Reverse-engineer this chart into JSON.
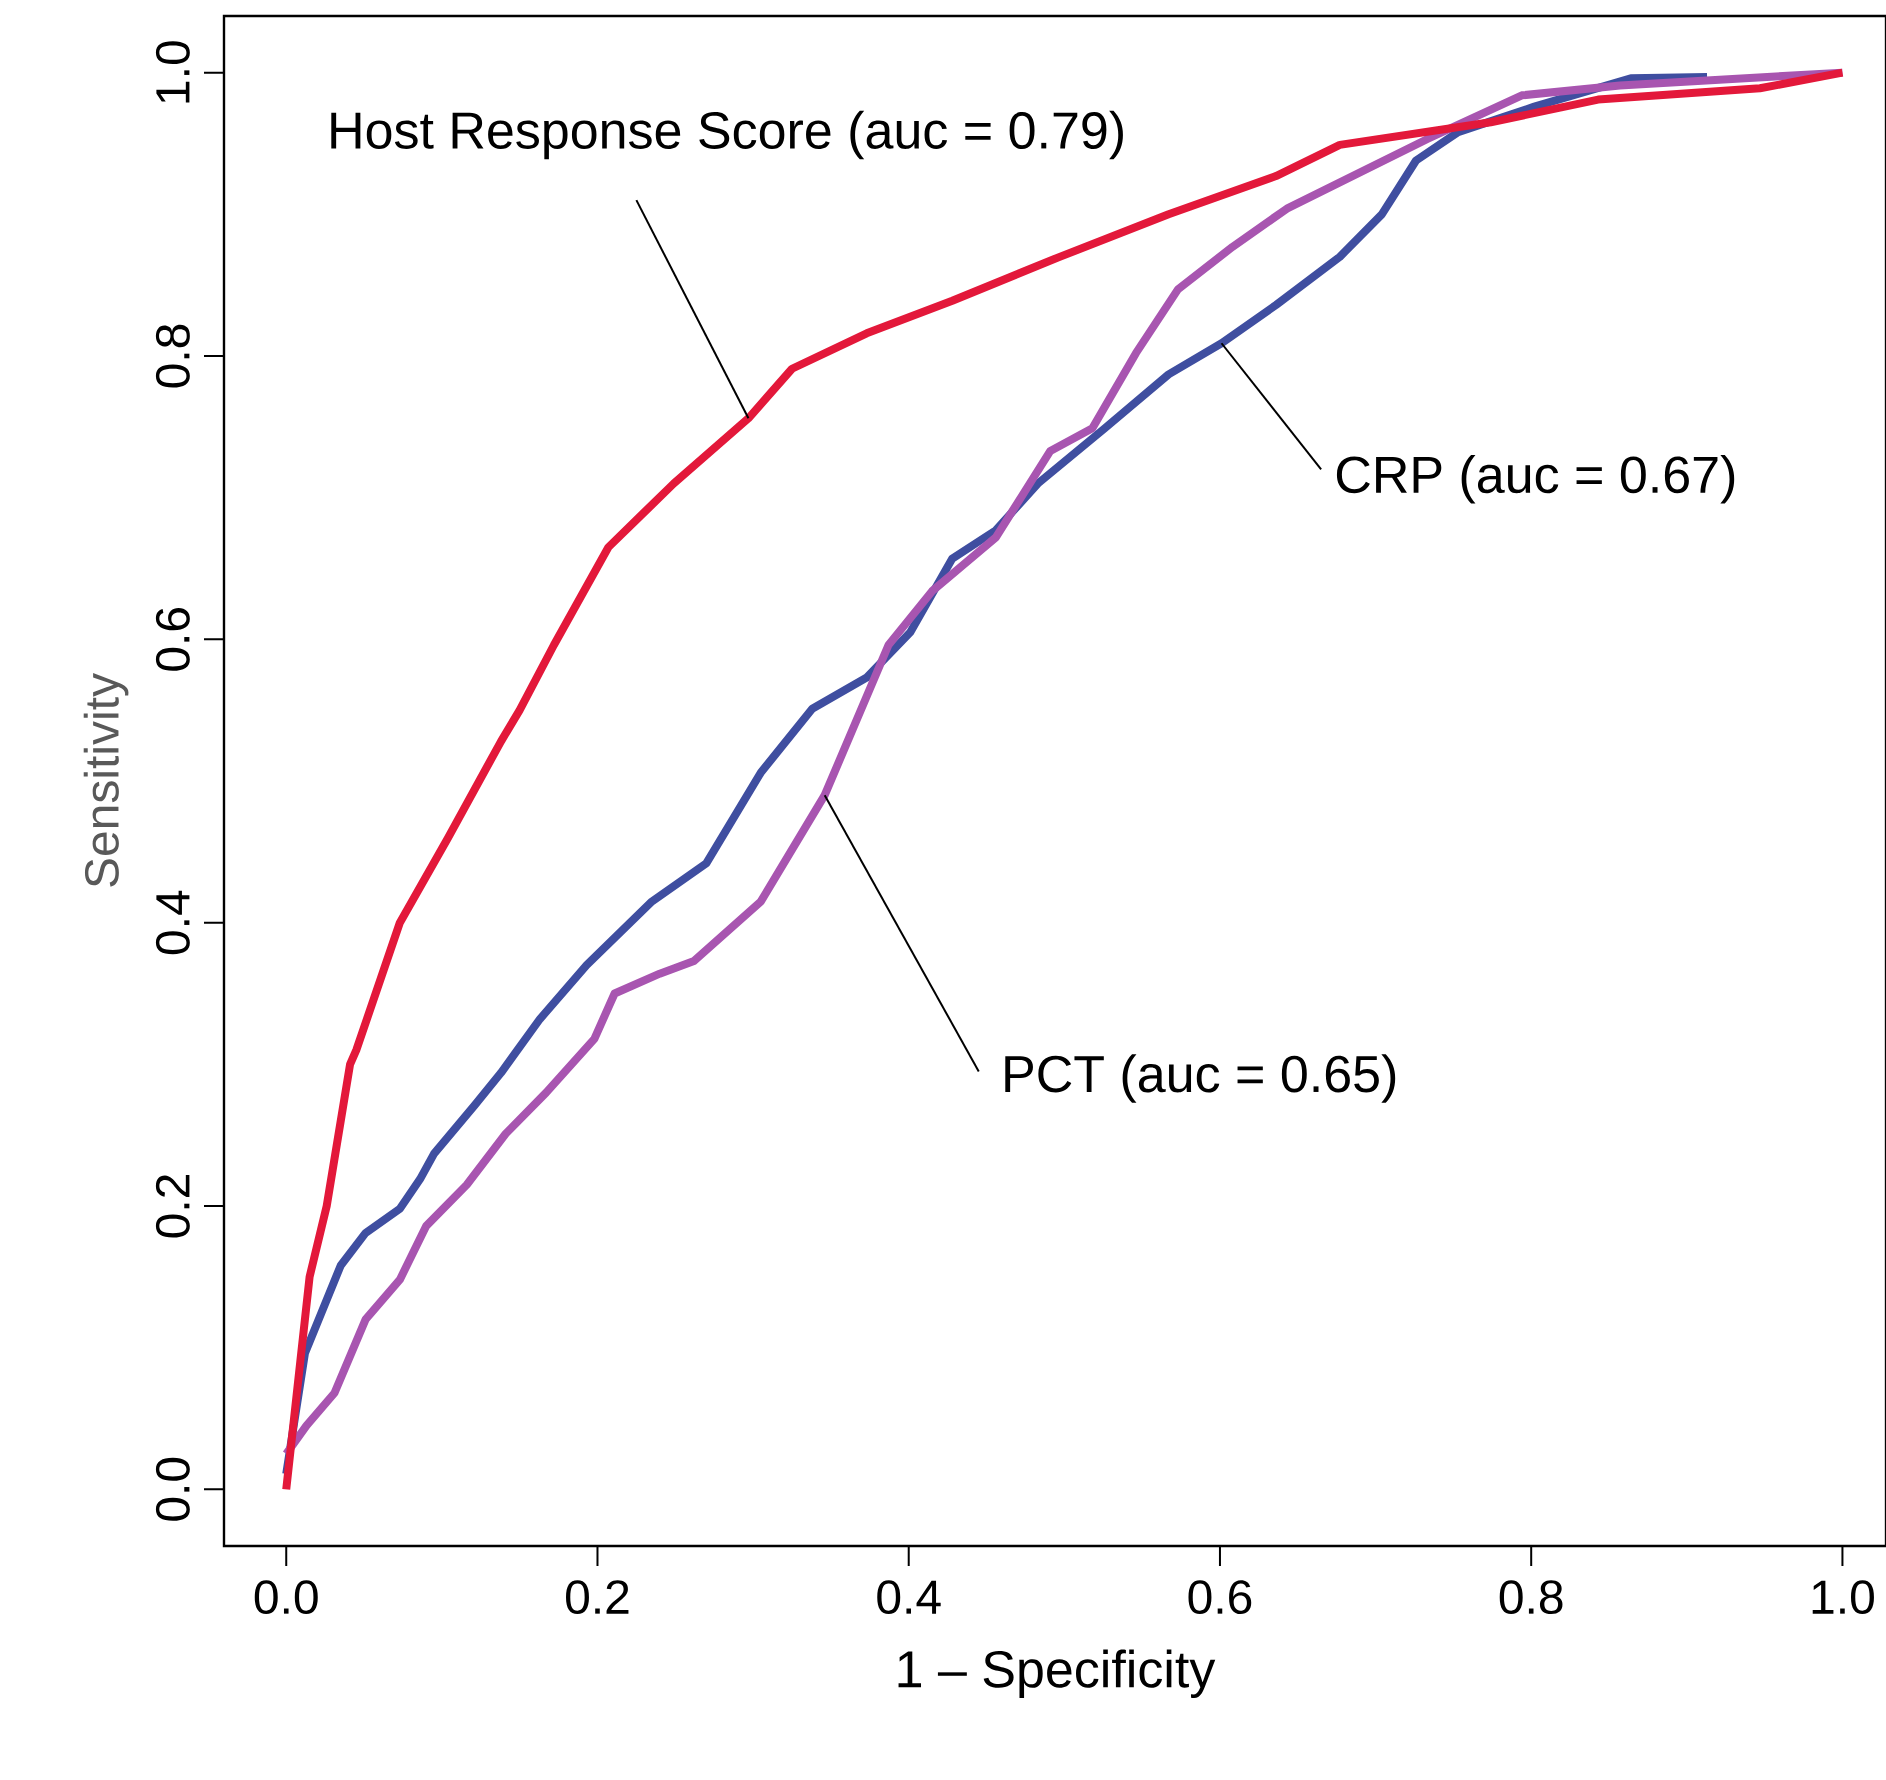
{
  "chart_data": {
    "type": "line",
    "xlabel": "1 – Specificity",
    "ylabel": "Sensitivity",
    "xlim": [
      -0.04,
      1.028
    ],
    "ylim": [
      -0.04,
      1.04
    ],
    "xticks": [
      {
        "value": 0,
        "label": "0.0"
      },
      {
        "value": 0.2,
        "label": "0.2"
      },
      {
        "value": 0.4,
        "label": "0.4"
      },
      {
        "value": 0.6,
        "label": "0.6"
      },
      {
        "value": 0.8,
        "label": "0.8"
      },
      {
        "value": 1,
        "label": "1.0"
      }
    ],
    "yticks": [
      {
        "value": 0,
        "label": "0.0"
      },
      {
        "value": 0.2,
        "label": "0.2"
      },
      {
        "value": 0.4,
        "label": "0.4"
      },
      {
        "value": 0.6,
        "label": "0.6"
      },
      {
        "value": 0.8,
        "label": "0.8"
      },
      {
        "value": 1,
        "label": "1.0"
      }
    ],
    "annotations": [
      {
        "text": "Host Response Score (auc = 0.79)",
        "x": 0.297,
        "y": 0.756
      },
      {
        "text": "CRP (auc = 0.67)",
        "x": 0.601,
        "y": 0.809
      },
      {
        "text": "PCT (auc = 0.65)",
        "x": 0.346,
        "y": 0.49
      }
    ],
    "grid": false,
    "marker": "none",
    "line_style": "solid",
    "series": [
      {
        "color": "#3f4ea0",
        "x": [
          0,
          0.012,
          0.035,
          0.051,
          0.073,
          0.086,
          0.095,
          0.121,
          0.138,
          0.163,
          0.193,
          0.235,
          0.27,
          0.305,
          0.338,
          0.373,
          0.401,
          0.428,
          0.456,
          0.483,
          0.526,
          0.567,
          0.601,
          0.636,
          0.677,
          0.704,
          0.726,
          0.753,
          0.802,
          0.864,
          0.913
        ],
        "values": [
          0.011,
          0.096,
          0.158,
          0.181,
          0.198,
          0.219,
          0.237,
          0.271,
          0.294,
          0.332,
          0.37,
          0.415,
          0.442,
          0.506,
          0.551,
          0.573,
          0.605,
          0.657,
          0.677,
          0.71,
          0.749,
          0.787,
          0.809,
          0.836,
          0.87,
          0.9,
          0.938,
          0.958,
          0.976,
          0.996,
          0.997
        ]
      },
      {
        "color": "#a855b0",
        "x": [
          0,
          0.013,
          0.031,
          0.051,
          0.073,
          0.09,
          0.116,
          0.141,
          0.167,
          0.198,
          0.211,
          0.24,
          0.262,
          0.305,
          0.346,
          0.387,
          0.415,
          0.456,
          0.491,
          0.518,
          0.546,
          0.573,
          0.608,
          0.643,
          0.733,
          0.794,
          0.857,
          1
        ],
        "values": [
          0.025,
          0.045,
          0.068,
          0.12,
          0.148,
          0.186,
          0.215,
          0.251,
          0.28,
          0.318,
          0.35,
          0.364,
          0.373,
          0.415,
          0.49,
          0.596,
          0.634,
          0.672,
          0.733,
          0.749,
          0.802,
          0.847,
          0.877,
          0.904,
          0.953,
          0.984,
          0.991,
          1
        ]
      },
      {
        "color": "#e3183a",
        "x": [
          0,
          0.009,
          0.015,
          0.026,
          0.041,
          0.045,
          0.073,
          0.104,
          0.138,
          0.15,
          0.172,
          0.207,
          0.249,
          0.297,
          0.325,
          0.373,
          0.428,
          0.497,
          0.567,
          0.636,
          0.677,
          0.774,
          0.843,
          0.947,
          1
        ],
        "values": [
          0,
          0.09,
          0.15,
          0.2,
          0.3,
          0.31,
          0.4,
          0.46,
          0.528,
          0.55,
          0.596,
          0.665,
          0.71,
          0.756,
          0.791,
          0.816,
          0.839,
          0.87,
          0.9,
          0.927,
          0.949,
          0.965,
          0.981,
          0.989,
          1
        ]
      }
    ]
  }
}
